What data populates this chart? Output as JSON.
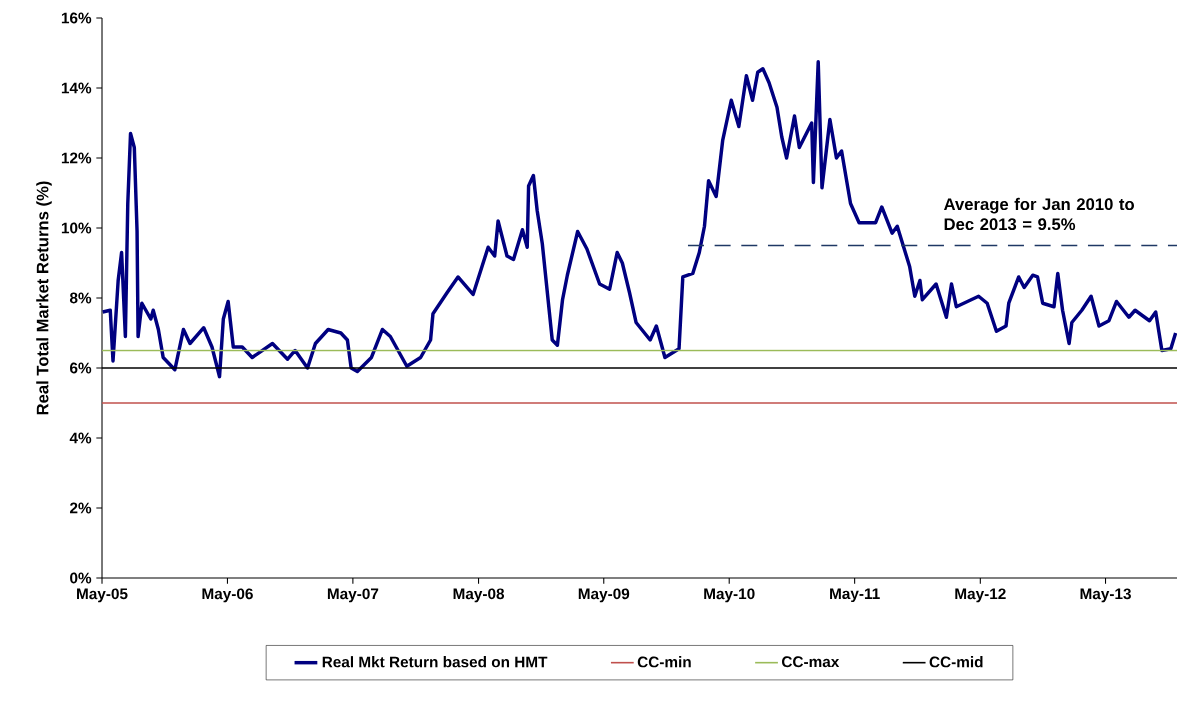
{
  "chart_data": {
    "type": "line",
    "ylabel": "Real Total Market Returns (%)",
    "xlim": [
      "2005-05-01",
      "2013-11-25"
    ],
    "ylim": [
      0,
      16
    ],
    "xticks": [
      {
        "value": "2005-05-01",
        "label": "May-05"
      },
      {
        "value": "2006-05-01",
        "label": "May-06"
      },
      {
        "value": "2007-05-01",
        "label": "May-07"
      },
      {
        "value": "2008-05-01",
        "label": "May-08"
      },
      {
        "value": "2009-05-01",
        "label": "May-09"
      },
      {
        "value": "2010-05-01",
        "label": "May-10"
      },
      {
        "value": "2011-05-01",
        "label": "May-11"
      },
      {
        "value": "2012-05-01",
        "label": "May-12"
      },
      {
        "value": "2013-05-01",
        "label": "May-13"
      }
    ],
    "yticks": [
      {
        "value": 0,
        "label": "0%"
      },
      {
        "value": 2,
        "label": "2%"
      },
      {
        "value": 4,
        "label": "4%"
      },
      {
        "value": 6,
        "label": "6%"
      },
      {
        "value": 8,
        "label": "8%"
      },
      {
        "value": 10,
        "label": "10%"
      },
      {
        "value": 12,
        "label": "12%"
      },
      {
        "value": 14,
        "label": "14%"
      },
      {
        "value": 16,
        "label": "16%"
      }
    ],
    "grid": false,
    "legend": "bottom",
    "marker": "none",
    "series": [
      {
        "name": "Real Mkt Return based on HMT",
        "color": "#000080",
        "line_style": "solid",
        "x": [
          "2005-05-03",
          "2005-05-25",
          "2005-06-02",
          "2005-06-17",
          "2005-06-27",
          "2005-07-08",
          "2005-07-15",
          "2005-07-23",
          "2005-08-03",
          "2005-08-11",
          "2005-08-14",
          "2005-08-25",
          "2005-09-20",
          "2005-09-27",
          "2005-10-12",
          "2005-10-26",
          "2005-11-29",
          "2005-12-24",
          "2006-01-12",
          "2006-02-21",
          "2006-03-17",
          "2006-04-08",
          "2006-04-19",
          "2006-05-03",
          "2006-05-18",
          "2006-06-13",
          "2006-07-12",
          "2006-09-09",
          "2006-10-23",
          "2006-11-14",
          "2006-12-20",
          "2007-01-12",
          "2007-02-18",
          "2007-03-27",
          "2007-04-15",
          "2007-04-26",
          "2007-05-14",
          "2007-06-24",
          "2007-07-26",
          "2007-08-18",
          "2007-10-05",
          "2007-11-14",
          "2007-12-13",
          "2007-12-20",
          "2008-01-30",
          "2008-03-02",
          "2008-04-15",
          "2008-05-29",
          "2008-06-17",
          "2008-06-27",
          "2008-07-23",
          "2008-08-11",
          "2008-09-06",
          "2008-09-20",
          "2008-09-24",
          "2008-10-08",
          "2008-10-19",
          "2008-11-03",
          "2008-12-02",
          "2008-12-17",
          "2009-01-01",
          "2009-01-15",
          "2009-02-14",
          "2009-03-13",
          "2009-04-19",
          "2009-05-18",
          "2009-06-09",
          "2009-06-24",
          "2009-07-15",
          "2009-08-03",
          "2009-09-13",
          "2009-10-01",
          "2009-10-26",
          "2009-12-06",
          "2009-12-17",
          "2010-01-15",
          "2010-02-03",
          "2010-02-18",
          "2010-03-02",
          "2010-03-24",
          "2010-04-12",
          "2010-05-07",
          "2010-05-29",
          "2010-06-20",
          "2010-07-08",
          "2010-07-23",
          "2010-08-07",
          "2010-08-25",
          "2010-09-17",
          "2010-10-01",
          "2010-10-15",
          "2010-11-07",
          "2010-11-21",
          "2010-12-27",
          "2011-01-01",
          "2011-01-15",
          "2011-01-26",
          "2011-02-18",
          "2011-03-09",
          "2011-03-24",
          "2011-04-19",
          "2011-05-14",
          "2011-07-01",
          "2011-07-19",
          "2011-08-18",
          "2011-09-02",
          "2011-10-08",
          "2011-10-23",
          "2011-11-07",
          "2011-11-14",
          "2011-12-24",
          "2012-01-23",
          "2012-02-07",
          "2012-02-21",
          "2012-04-26",
          "2012-05-21",
          "2012-06-17",
          "2012-07-15",
          "2012-07-23",
          "2012-08-21",
          "2012-09-06",
          "2012-10-01",
          "2012-10-15",
          "2012-10-30",
          "2012-12-02",
          "2012-12-13",
          "2012-12-27",
          "2013-01-15",
          "2013-01-23",
          "2013-02-21",
          "2013-03-20",
          "2013-04-12",
          "2013-05-11",
          "2013-06-02",
          "2013-07-08",
          "2013-07-26",
          "2013-09-06",
          "2013-09-24",
          "2013-10-12",
          "2013-11-07",
          "2013-11-21"
        ],
        "values": [
          7.6,
          7.65,
          6.2,
          8.5,
          9.3,
          6.9,
          10.7,
          12.7,
          12.3,
          9.9,
          6.9,
          7.85,
          7.4,
          7.65,
          7.1,
          6.3,
          5.95,
          7.1,
          6.7,
          7.15,
          6.6,
          5.75,
          7.4,
          7.9,
          6.6,
          6.6,
          6.3,
          6.7,
          6.25,
          6.5,
          6.0,
          6.7,
          7.1,
          7.0,
          6.8,
          6.0,
          5.9,
          6.3,
          7.1,
          6.9,
          6.05,
          6.3,
          6.8,
          7.55,
          8.15,
          8.6,
          8.1,
          9.45,
          9.2,
          10.2,
          9.2,
          9.1,
          9.95,
          9.45,
          11.2,
          11.5,
          10.5,
          9.55,
          6.8,
          6.65,
          7.95,
          8.65,
          9.9,
          9.4,
          8.4,
          8.25,
          9.3,
          9.0,
          8.15,
          7.3,
          6.8,
          7.2,
          6.3,
          6.55,
          8.6,
          8.7,
          9.3,
          10.05,
          11.35,
          10.9,
          12.5,
          13.65,
          12.9,
          14.35,
          13.65,
          14.45,
          14.55,
          14.15,
          13.45,
          12.6,
          12.0,
          13.2,
          12.3,
          13.0,
          11.3,
          14.75,
          11.15,
          13.1,
          12.0,
          12.2,
          10.7,
          10.15,
          10.15,
          10.6,
          9.85,
          10.05,
          8.9,
          8.05,
          8.5,
          7.95,
          8.4,
          7.45,
          8.4,
          7.75,
          8.05,
          7.85,
          7.05,
          7.2,
          7.85,
          8.6,
          8.3,
          8.65,
          8.6,
          7.85,
          7.75,
          8.7,
          7.65,
          6.7,
          7.3,
          7.65,
          8.05,
          7.2,
          7.35,
          7.9,
          7.45,
          7.65,
          7.35,
          7.6,
          6.5,
          6.55,
          7.0
        ]
      },
      {
        "name": "CC-min",
        "color": "#c0504d",
        "line_style": "solid",
        "x": [
          "2005-05-01",
          "2013-11-25"
        ],
        "values": [
          5,
          5
        ]
      },
      {
        "name": "CC-max",
        "color": "#9bbb59",
        "line_style": "solid",
        "x": [
          "2005-05-01",
          "2013-11-25"
        ],
        "values": [
          6.5,
          6.5
        ]
      },
      {
        "name": "CC-mid",
        "color": "#000000",
        "line_style": "solid",
        "x": [
          "2005-05-01",
          "2013-11-25"
        ],
        "values": [
          6,
          6
        ]
      },
      {
        "color": "#1f3864",
        "line_style": "dashed",
        "x": [
          "2010-01-01",
          "2013-11-25"
        ],
        "values": [
          9.5,
          9.5
        ]
      }
    ],
    "annotations": [
      {
        "text": "Average for Jan 2010 to Dec 2013 = 9.5%",
        "x": "2012-01-01",
        "y": 9.5
      }
    ]
  }
}
